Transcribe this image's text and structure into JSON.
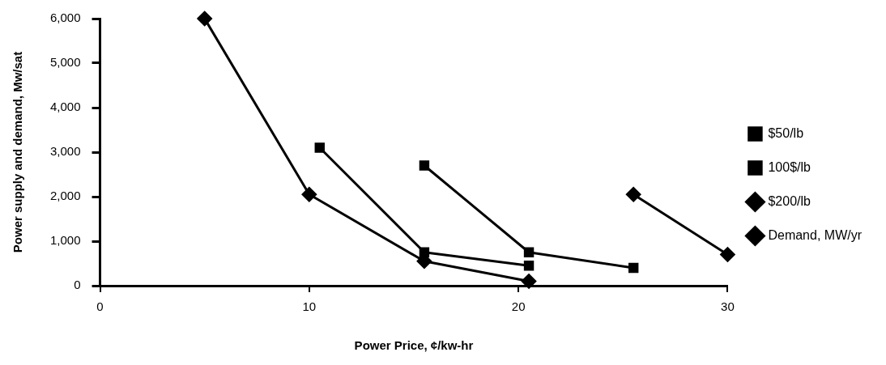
{
  "chart_data": {
    "type": "line",
    "xlabel": "Power Price, ¢/kw-hr",
    "ylabel": "Power supply and demand, Mw/sat",
    "xlim": [
      0,
      30
    ],
    "xticks": [
      0,
      10,
      20,
      30
    ],
    "ylim": [
      0,
      6000
    ],
    "yticks": [
      0,
      {
        "value": 1000,
        "label": "1,000"
      },
      {
        "value": 2000,
        "label": "2,000"
      },
      {
        "value": 3000,
        "label": "3,000"
      },
      {
        "value": 4000,
        "label": "4,000"
      },
      {
        "value": 5000,
        "label": "5,000"
      },
      {
        "value": 6000,
        "label": "6,000"
      }
    ],
    "grid": false,
    "legend": "right",
    "line_style": "solid",
    "series": [
      {
        "name": "$50/lb",
        "color": "#000000",
        "marker": "square",
        "x": [
          10.5,
          15.5,
          20.5
        ],
        "values": [
          3100,
          750,
          450
        ]
      },
      {
        "name": "100$/lb",
        "color": "#000000",
        "marker": "square",
        "x": [
          15.5,
          20.5,
          25.5
        ],
        "values": [
          2700,
          750,
          400
        ]
      },
      {
        "name": "$200/lb",
        "color": "#000000",
        "marker": "diamond",
        "x": [
          25.5,
          30
        ],
        "values": [
          2050,
          700
        ]
      },
      {
        "name": "Demand, MW/yr",
        "color": "#000000",
        "marker": "diamond",
        "x": [
          5,
          10,
          15.5,
          20.5
        ],
        "values": [
          6000,
          2050,
          550,
          100
        ]
      }
    ]
  }
}
